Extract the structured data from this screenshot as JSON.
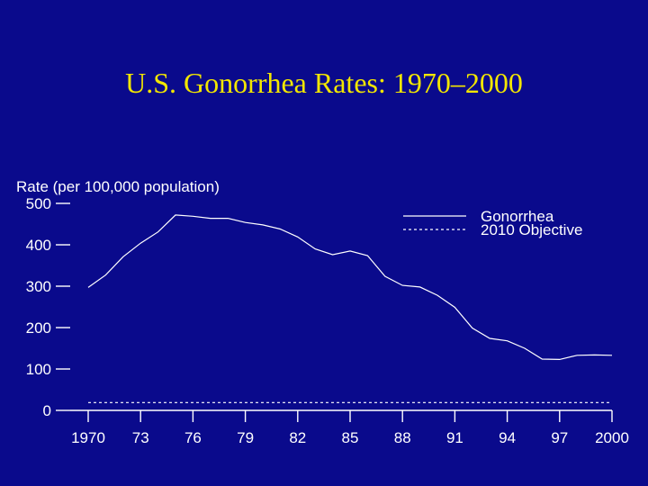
{
  "chart_data": {
    "type": "line",
    "title": "U.S. Gonorrhea Rates: 1970–2000",
    "ylabel": "Rate (per 100,000 population)",
    "xlabel": "",
    "ylim": [
      0,
      500
    ],
    "xlim": [
      1970,
      2000
    ],
    "yticks": [
      0,
      100,
      200,
      300,
      400,
      500
    ],
    "xticks": [
      1970,
      1973,
      1976,
      1979,
      1982,
      1985,
      1988,
      1991,
      1994,
      1997,
      2000
    ],
    "xtick_labels": [
      "1970",
      "73",
      "76",
      "79",
      "82",
      "85",
      "88",
      "91",
      "94",
      "97",
      "2000"
    ],
    "legend_position": "top-right",
    "series": [
      {
        "name": "Gonorrhea",
        "style": "solid",
        "x": [
          1970,
          1971,
          1972,
          1973,
          1974,
          1975,
          1976,
          1977,
          1978,
          1979,
          1980,
          1981,
          1982,
          1983,
          1984,
          1985,
          1986,
          1987,
          1988,
          1989,
          1990,
          1991,
          1992,
          1993,
          1994,
          1995,
          1996,
          1997,
          1998,
          1999,
          2000
        ],
        "values": [
          297,
          327,
          371,
          404,
          431,
          472,
          469,
          464,
          464,
          454,
          448,
          438,
          419,
          390,
          376,
          385,
          374,
          324,
          302,
          298,
          278,
          249,
          199,
          174,
          168,
          150,
          124,
          123,
          133,
          134,
          133
        ]
      },
      {
        "name": "2010 Objective",
        "style": "dotted",
        "x": [
          1970,
          2000
        ],
        "values": [
          19,
          19
        ]
      }
    ]
  }
}
